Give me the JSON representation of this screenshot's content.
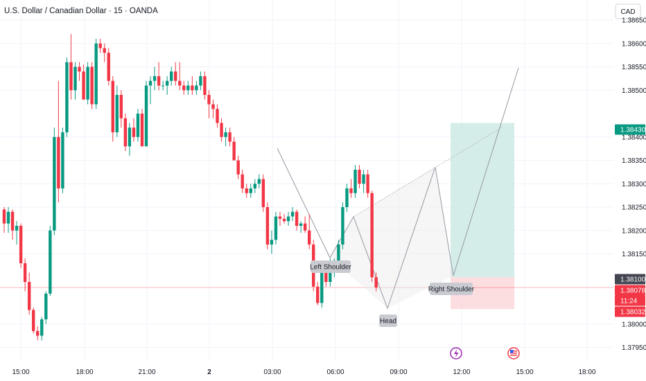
{
  "header": {
    "title": "U.S. Dollar / Canadian Dollar · 15 · OANDA"
  },
  "currency_button": {
    "label": "CAD"
  },
  "colors": {
    "up": "#089981",
    "down": "#f23645",
    "grid": "#f0f3fa",
    "target_zone": "#cbe9e3",
    "stop_zone": "#fbd5d8",
    "pattern_fill": "#ececec",
    "price_badge_green": "#089981",
    "price_badge_red": "#f23645",
    "price_badge_gray": "#434651"
  },
  "price_scale": {
    "labels": [
      "1.38650",
      "1.38600",
      "1.38550",
      "1.38500",
      "1.38400",
      "1.38350",
      "1.38300",
      "1.38250",
      "1.38200",
      "1.38150",
      "1.38000",
      "1.37950"
    ]
  },
  "price_badges": [
    {
      "name": "target-price-badge",
      "text": "1.38430",
      "color": "green",
      "value": 1.3843
    },
    {
      "name": "entry-price-badge",
      "text": "1.38100",
      "color": "gray",
      "value": 1.381
    },
    {
      "name": "last-price-badge",
      "text": "1.38078",
      "color": "red",
      "value": 1.38078
    },
    {
      "name": "countdown-badge",
      "text": "11:24",
      "color": "red",
      "value": 1.38058
    },
    {
      "name": "stop-price-badge",
      "text": "1.38032",
      "color": "red",
      "value": 1.38032
    }
  ],
  "time_axis": {
    "labels": [
      "15:00",
      "18:00",
      "21:00",
      "2",
      "03:00",
      "06:00",
      "09:00",
      "12:00",
      "15:00",
      "18:00"
    ],
    "bold_label": "2"
  },
  "pattern_labels": {
    "left_shoulder": "Left Shoulder",
    "head": "Head",
    "right_shoulder": "Right Shoulder"
  },
  "position": {
    "entry": 1.381,
    "target": 1.3843,
    "stop": 1.38032
  },
  "chart_data": {
    "type": "candlestick",
    "symbol": "U.S. Dollar / Canadian Dollar",
    "interval": "15",
    "source": "OANDA",
    "ylim": [
      1.3793,
      1.3869
    ],
    "candles": [
      [
        1.38245,
        1.3825,
        1.38195,
        1.38215
      ],
      [
        1.38215,
        1.3825,
        1.38195,
        1.3824
      ],
      [
        1.3824,
        1.38245,
        1.3818,
        1.382
      ],
      [
        1.382,
        1.3822,
        1.3817,
        1.3821
      ],
      [
        1.3821,
        1.38215,
        1.3812,
        1.3813
      ],
      [
        1.3813,
        1.3814,
        1.3807,
        1.3809
      ],
      [
        1.3809,
        1.3811,
        1.3802,
        1.3803
      ],
      [
        1.3803,
        1.38035,
        1.3798,
        1.37985
      ],
      [
        1.37985,
        1.37995,
        1.37965,
        1.37975
      ],
      [
        1.37975,
        1.38015,
        1.37965,
        1.3801
      ],
      [
        1.3801,
        1.3807,
        1.38,
        1.38065
      ],
      [
        1.38065,
        1.3821,
        1.3806,
        1.382
      ],
      [
        1.382,
        1.3842,
        1.3819,
        1.384
      ],
      [
        1.384,
        1.3852,
        1.3826,
        1.3829
      ],
      [
        1.3829,
        1.3842,
        1.3828,
        1.3841
      ],
      [
        1.3841,
        1.3857,
        1.384,
        1.3856
      ],
      [
        1.3856,
        1.3862,
        1.3848,
        1.385
      ],
      [
        1.385,
        1.3856,
        1.3848,
        1.3855
      ],
      [
        1.3855,
        1.3856,
        1.3852,
        1.3854
      ],
      [
        1.3854,
        1.38555,
        1.3848,
        1.3848
      ],
      [
        1.3848,
        1.3856,
        1.3847,
        1.3855
      ],
      [
        1.3855,
        1.3856,
        1.3846,
        1.3847
      ],
      [
        1.3847,
        1.3861,
        1.3846,
        1.386
      ],
      [
        1.386,
        1.3861,
        1.3858,
        1.3859
      ],
      [
        1.3859,
        1.386,
        1.3856,
        1.3858
      ],
      [
        1.3858,
        1.3859,
        1.3851,
        1.3852
      ],
      [
        1.3852,
        1.3853,
        1.3839,
        1.3841
      ],
      [
        1.3841,
        1.3851,
        1.384,
        1.3849
      ],
      [
        1.3849,
        1.385,
        1.3842,
        1.3844
      ],
      [
        1.3844,
        1.3845,
        1.3837,
        1.3838
      ],
      [
        1.3838,
        1.3843,
        1.3836,
        1.3842
      ],
      [
        1.3842,
        1.3844,
        1.3839,
        1.384
      ],
      [
        1.384,
        1.3846,
        1.3839,
        1.3845
      ],
      [
        1.3845,
        1.3846,
        1.3838,
        1.3838
      ],
      [
        1.3838,
        1.3852,
        1.3838,
        1.3851
      ],
      [
        1.3851,
        1.3853,
        1.3847,
        1.3852
      ],
      [
        1.3852,
        1.3855,
        1.385,
        1.3853
      ],
      [
        1.3853,
        1.3856,
        1.385,
        1.3851
      ],
      [
        1.3851,
        1.3852,
        1.385,
        1.3851
      ],
      [
        1.3851,
        1.3853,
        1.3849,
        1.3852
      ],
      [
        1.3852,
        1.3855,
        1.3851,
        1.3854
      ],
      [
        1.3854,
        1.3856,
        1.3851,
        1.3852
      ],
      [
        1.3852,
        1.3856,
        1.385,
        1.3851
      ],
      [
        1.3851,
        1.3852,
        1.3849,
        1.385
      ],
      [
        1.385,
        1.3852,
        1.3849,
        1.3851
      ],
      [
        1.3851,
        1.3853,
        1.3849,
        1.385
      ],
      [
        1.385,
        1.3852,
        1.3849,
        1.3851
      ],
      [
        1.3851,
        1.3854,
        1.385,
        1.3853
      ],
      [
        1.3853,
        1.3854,
        1.3848,
        1.3849
      ],
      [
        1.3849,
        1.385,
        1.3844,
        1.3847
      ],
      [
        1.3847,
        1.3848,
        1.3844,
        1.3846
      ],
      [
        1.3846,
        1.3847,
        1.3842,
        1.3843
      ],
      [
        1.3843,
        1.3844,
        1.3839,
        1.384
      ],
      [
        1.384,
        1.3842,
        1.3838,
        1.3841
      ],
      [
        1.3841,
        1.3842,
        1.3838,
        1.3839
      ],
      [
        1.3839,
        1.384,
        1.3835,
        1.3835
      ],
      [
        1.3835,
        1.3836,
        1.3831,
        1.3832
      ],
      [
        1.3832,
        1.3833,
        1.3828,
        1.3829
      ],
      [
        1.3829,
        1.383,
        1.3827,
        1.3828
      ],
      [
        1.3828,
        1.383,
        1.3827,
        1.3829
      ],
      [
        1.3829,
        1.3831,
        1.3828,
        1.383
      ],
      [
        1.383,
        1.3832,
        1.3829,
        1.3831
      ],
      [
        1.3831,
        1.3832,
        1.3824,
        1.3825
      ],
      [
        1.3825,
        1.3826,
        1.3816,
        1.3817
      ],
      [
        1.3817,
        1.382,
        1.3815,
        1.3818
      ],
      [
        1.3818,
        1.3824,
        1.3817,
        1.3823
      ],
      [
        1.3823,
        1.3824,
        1.3821,
        1.38225
      ],
      [
        1.38225,
        1.38235,
        1.38215,
        1.3822
      ],
      [
        1.3822,
        1.3824,
        1.3821,
        1.3823
      ],
      [
        1.3823,
        1.3825,
        1.3822,
        1.3824
      ],
      [
        1.3824,
        1.38245,
        1.382,
        1.3821
      ],
      [
        1.3821,
        1.3822,
        1.38195,
        1.38215
      ],
      [
        1.38215,
        1.3823,
        1.38195,
        1.382
      ],
      [
        1.382,
        1.38235,
        1.3816,
        1.3817
      ],
      [
        1.3817,
        1.3818,
        1.3807,
        1.3808
      ],
      [
        1.3808,
        1.3809,
        1.3804,
        1.38045
      ],
      [
        1.38045,
        1.3812,
        1.38035,
        1.3811
      ],
      [
        1.3811,
        1.3813,
        1.3808,
        1.3809
      ],
      [
        1.3809,
        1.3814,
        1.3808,
        1.38125
      ],
      [
        1.38125,
        1.3814,
        1.381,
        1.3813
      ],
      [
        1.3813,
        1.3818,
        1.3812,
        1.3817
      ],
      [
        1.3817,
        1.3826,
        1.3816,
        1.3825
      ],
      [
        1.3825,
        1.383,
        1.3824,
        1.3829
      ],
      [
        1.3829,
        1.3831,
        1.3827,
        1.3828
      ],
      [
        1.3828,
        1.3834,
        1.3827,
        1.3833
      ],
      [
        1.3833,
        1.3834,
        1.3829,
        1.383
      ],
      [
        1.383,
        1.3833,
        1.3828,
        1.3832
      ],
      [
        1.3832,
        1.3833,
        1.3827,
        1.3828
      ],
      [
        1.3828,
        1.38285,
        1.3809,
        1.381
      ],
      [
        1.381,
        1.3811,
        1.3807,
        1.38078
      ]
    ]
  }
}
